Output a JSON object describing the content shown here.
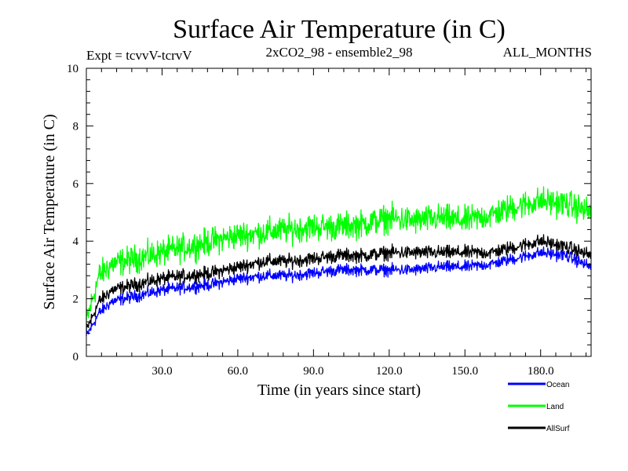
{
  "chart_data": {
    "type": "line",
    "title": "Surface Air Temperature (in C)",
    "header_left": "Expt = tcvvV-tcrvV",
    "header_center": "2xCO2_98 - ensemble2_98",
    "header_right": "ALL_MONTHS",
    "xlabel": "Time (in years since start)",
    "ylabel": "Surface Air Temperature (in C)",
    "xlim": [
      0,
      200
    ],
    "ylim": [
      0,
      10
    ],
    "x_ticks": [
      30,
      60,
      90,
      120,
      150,
      180
    ],
    "x_tick_labels": [
      "30.0",
      "60.0",
      "90.0",
      "120.0",
      "150.0",
      "180.0"
    ],
    "y_ticks": [
      0,
      2,
      4,
      6,
      8,
      10
    ],
    "y_tick_labels": [
      "0",
      "2",
      "4",
      "6",
      "8",
      "10"
    ],
    "grid": false,
    "legend_position": "bottom-right",
    "x_sample_years": [
      0,
      5,
      10,
      20,
      30,
      40,
      50,
      60,
      70,
      80,
      90,
      100,
      110,
      120,
      130,
      140,
      150,
      160,
      170,
      180,
      190,
      200
    ],
    "series": [
      {
        "name": "Land",
        "color": "#00ff00",
        "values": [
          1.2,
          2.8,
          3.2,
          3.4,
          3.6,
          3.8,
          4.0,
          4.2,
          4.3,
          4.4,
          4.5,
          4.5,
          4.6,
          4.8,
          4.7,
          4.8,
          4.7,
          4.9,
          5.2,
          5.4,
          5.3,
          5.0
        ],
        "noise_amplitude": 0.7
      },
      {
        "name": "AllSurf",
        "color": "#000000",
        "values": [
          0.9,
          1.9,
          2.3,
          2.5,
          2.7,
          2.8,
          2.9,
          3.1,
          3.3,
          3.3,
          3.4,
          3.5,
          3.5,
          3.6,
          3.6,
          3.6,
          3.6,
          3.6,
          3.8,
          4.0,
          3.8,
          3.5
        ],
        "noise_amplitude": 0.35
      },
      {
        "name": "Ocean",
        "color": "#0000ff",
        "values": [
          0.7,
          1.5,
          1.9,
          2.1,
          2.3,
          2.4,
          2.5,
          2.7,
          2.8,
          2.8,
          2.9,
          3.0,
          3.0,
          3.0,
          3.0,
          3.1,
          3.1,
          3.2,
          3.4,
          3.6,
          3.5,
          3.1
        ],
        "noise_amplitude": 0.3
      }
    ],
    "legend_order": [
      "Ocean",
      "Land",
      "AllSurf"
    ]
  }
}
